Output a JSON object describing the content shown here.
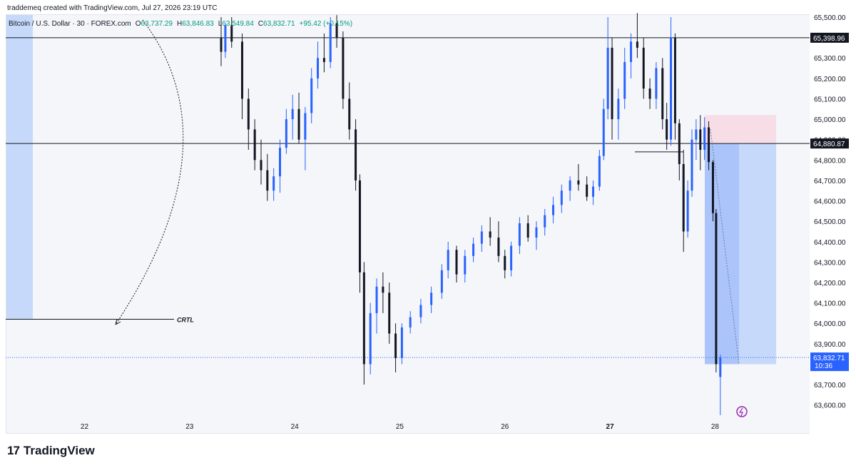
{
  "header": {
    "attribution": "traddemeq created with TradingView.com, Jul 27, 2026 23:19 UTC"
  },
  "symbol": {
    "name": "Bitcoin / U.S. Dollar · 30 · FOREX.com",
    "o_label": "O",
    "o_value": "63,737.29",
    "h_label": "H",
    "h_value": "63,846.83",
    "l_label": "L",
    "l_value": "63,549.84",
    "c_label": "C",
    "c_value": "63,832.71",
    "change": "+95.42 (+0.15%)"
  },
  "branding": {
    "logo_text": "TradingView"
  },
  "annotation": {
    "crtl_label": "CRTL"
  },
  "colors": {
    "candle_up": "#2962ff",
    "candle_down": "#131722",
    "zone_blue": "#bdd3f9",
    "zone_red": "#f7dce3",
    "last_price_bg": "#2962ff",
    "background": "#f4f6fa"
  },
  "chart_data": {
    "type": "candlestick",
    "ylim": [
      63550,
      65500
    ],
    "price_ticks": [
      "65,500.00",
      "65,300.00",
      "65,200.00",
      "65,100.00",
      "65,000.00",
      "64,900.00",
      "64,800.00",
      "64,700.00",
      "64,600.00",
      "64,500.00",
      "64,400.00",
      "64,300.00",
      "64,200.00",
      "64,100.00",
      "64,000.00",
      "63,900.00",
      "63,800.00",
      "63,700.00",
      "63,600.00"
    ],
    "price_tick_values": [
      65500,
      65300,
      65200,
      65100,
      65000,
      64900,
      64800,
      64700,
      64600,
      64500,
      64400,
      64300,
      64200,
      64100,
      64000,
      63900,
      63800,
      63700,
      63600
    ],
    "date_labels": [
      "22",
      "23",
      "24",
      "25",
      "26",
      "27",
      "28"
    ],
    "date_positions": [
      22,
      23,
      24,
      25,
      26,
      27,
      28
    ],
    "x_range": [
      21.25,
      28.9
    ],
    "horizontal_levels": [
      {
        "price": 65398.96,
        "label": "65,398.96"
      },
      {
        "price": 64880.87,
        "label": "64,880.87"
      }
    ],
    "crtl_level": 64020,
    "last_price": {
      "price": 63832.71,
      "label": "63,832.71",
      "countdown": "10:36"
    },
    "candles": [
      {
        "t": 23.3,
        "o": 65400,
        "h": 65500,
        "l": 65260,
        "c": 65330
      },
      {
        "t": 23.34,
        "o": 65330,
        "h": 65470,
        "l": 65300,
        "c": 65460
      },
      {
        "t": 23.4,
        "o": 65460,
        "h": 65500,
        "l": 65350,
        "c": 65380
      },
      {
        "t": 23.5,
        "o": 65380,
        "h": 65420,
        "l": 65000,
        "c": 65100
      },
      {
        "t": 23.56,
        "o": 65100,
        "h": 65150,
        "l": 64850,
        "c": 64950
      },
      {
        "t": 23.62,
        "o": 64950,
        "h": 65000,
        "l": 64750,
        "c": 64800
      },
      {
        "t": 23.68,
        "o": 64800,
        "h": 64900,
        "l": 64680,
        "c": 64750
      },
      {
        "t": 23.74,
        "o": 64750,
        "h": 64830,
        "l": 64600,
        "c": 64650
      },
      {
        "t": 23.8,
        "o": 64650,
        "h": 64760,
        "l": 64600,
        "c": 64720
      },
      {
        "t": 23.86,
        "o": 64720,
        "h": 64900,
        "l": 64640,
        "c": 64860
      },
      {
        "t": 23.92,
        "o": 64860,
        "h": 65050,
        "l": 64830,
        "c": 65000
      },
      {
        "t": 23.98,
        "o": 65000,
        "h": 65120,
        "l": 64900,
        "c": 65050
      },
      {
        "t": 24.04,
        "o": 65050,
        "h": 65130,
        "l": 64880,
        "c": 64900
      },
      {
        "t": 24.1,
        "o": 64900,
        "h": 65060,
        "l": 64750,
        "c": 65030
      },
      {
        "t": 24.16,
        "o": 65030,
        "h": 65250,
        "l": 64980,
        "c": 65200
      },
      {
        "t": 24.22,
        "o": 65200,
        "h": 65380,
        "l": 65150,
        "c": 65300
      },
      {
        "t": 24.28,
        "o": 65300,
        "h": 65420,
        "l": 65230,
        "c": 65280
      },
      {
        "t": 24.34,
        "o": 65280,
        "h": 65500,
        "l": 65250,
        "c": 65470
      },
      {
        "t": 24.4,
        "o": 65470,
        "h": 65510,
        "l": 65350,
        "c": 65400
      },
      {
        "t": 24.46,
        "o": 65400,
        "h": 65430,
        "l": 65050,
        "c": 65100
      },
      {
        "t": 24.52,
        "o": 65100,
        "h": 65180,
        "l": 64900,
        "c": 64950
      },
      {
        "t": 24.58,
        "o": 64950,
        "h": 65000,
        "l": 64650,
        "c": 64700
      },
      {
        "t": 24.62,
        "o": 64700,
        "h": 64730,
        "l": 64150,
        "c": 64250
      },
      {
        "t": 24.66,
        "o": 64250,
        "h": 64300,
        "l": 63700,
        "c": 63800
      },
      {
        "t": 24.72,
        "o": 63800,
        "h": 64100,
        "l": 63750,
        "c": 64050
      },
      {
        "t": 24.78,
        "o": 64050,
        "h": 64220,
        "l": 63950,
        "c": 64180
      },
      {
        "t": 24.84,
        "o": 64180,
        "h": 64250,
        "l": 64050,
        "c": 64150
      },
      {
        "t": 24.9,
        "o": 64150,
        "h": 64200,
        "l": 63900,
        "c": 63950
      },
      {
        "t": 24.96,
        "o": 63950,
        "h": 64000,
        "l": 63760,
        "c": 63830
      },
      {
        "t": 25.02,
        "o": 63830,
        "h": 64000,
        "l": 63800,
        "c": 63980
      },
      {
        "t": 25.1,
        "o": 63980,
        "h": 64060,
        "l": 63950,
        "c": 64030
      },
      {
        "t": 25.2,
        "o": 64030,
        "h": 64120,
        "l": 64000,
        "c": 64090
      },
      {
        "t": 25.3,
        "o": 64090,
        "h": 64180,
        "l": 64050,
        "c": 64150
      },
      {
        "t": 25.4,
        "o": 64150,
        "h": 64290,
        "l": 64120,
        "c": 64260
      },
      {
        "t": 25.46,
        "o": 64260,
        "h": 64400,
        "l": 64220,
        "c": 64360
      },
      {
        "t": 25.54,
        "o": 64360,
        "h": 64380,
        "l": 64200,
        "c": 64240
      },
      {
        "t": 25.62,
        "o": 64240,
        "h": 64360,
        "l": 64200,
        "c": 64330
      },
      {
        "t": 25.7,
        "o": 64330,
        "h": 64420,
        "l": 64300,
        "c": 64390
      },
      {
        "t": 25.78,
        "o": 64390,
        "h": 64480,
        "l": 64350,
        "c": 64450
      },
      {
        "t": 25.86,
        "o": 64450,
        "h": 64520,
        "l": 64380,
        "c": 64420
      },
      {
        "t": 25.94,
        "o": 64420,
        "h": 64500,
        "l": 64300,
        "c": 64330
      },
      {
        "t": 26.0,
        "o": 64330,
        "h": 64360,
        "l": 64220,
        "c": 64260
      },
      {
        "t": 26.06,
        "o": 64260,
        "h": 64400,
        "l": 64230,
        "c": 64380
      },
      {
        "t": 26.14,
        "o": 64380,
        "h": 64520,
        "l": 64340,
        "c": 64490
      },
      {
        "t": 26.22,
        "o": 64490,
        "h": 64530,
        "l": 64400,
        "c": 64420
      },
      {
        "t": 26.3,
        "o": 64420,
        "h": 64500,
        "l": 64360,
        "c": 64470
      },
      {
        "t": 26.38,
        "o": 64470,
        "h": 64560,
        "l": 64430,
        "c": 64530
      },
      {
        "t": 26.46,
        "o": 64530,
        "h": 64620,
        "l": 64490,
        "c": 64580
      },
      {
        "t": 26.54,
        "o": 64580,
        "h": 64680,
        "l": 64540,
        "c": 64650
      },
      {
        "t": 26.62,
        "o": 64650,
        "h": 64720,
        "l": 64600,
        "c": 64700
      },
      {
        "t": 26.7,
        "o": 64700,
        "h": 64780,
        "l": 64650,
        "c": 64680
      },
      {
        "t": 26.78,
        "o": 64680,
        "h": 64720,
        "l": 64600,
        "c": 64620
      },
      {
        "t": 26.84,
        "o": 64620,
        "h": 64700,
        "l": 64580,
        "c": 64670
      },
      {
        "t": 26.9,
        "o": 64670,
        "h": 64850,
        "l": 64650,
        "c": 64820
      },
      {
        "t": 26.94,
        "o": 64820,
        "h": 65100,
        "l": 64800,
        "c": 65050
      },
      {
        "t": 26.98,
        "o": 65050,
        "h": 65500,
        "l": 65000,
        "c": 65350
      },
      {
        "t": 27.02,
        "o": 65350,
        "h": 65400,
        "l": 64900,
        "c": 65000
      },
      {
        "t": 27.08,
        "o": 65000,
        "h": 65150,
        "l": 64900,
        "c": 65100
      },
      {
        "t": 27.14,
        "o": 65100,
        "h": 65350,
        "l": 65050,
        "c": 65280
      },
      {
        "t": 27.2,
        "o": 65280,
        "h": 65420,
        "l": 65200,
        "c": 65380
      },
      {
        "t": 27.26,
        "o": 65380,
        "h": 65520,
        "l": 65300,
        "c": 65350
      },
      {
        "t": 27.32,
        "o": 65350,
        "h": 65400,
        "l": 65100,
        "c": 65150
      },
      {
        "t": 27.38,
        "o": 65150,
        "h": 65200,
        "l": 65050,
        "c": 65100
      },
      {
        "t": 27.44,
        "o": 65100,
        "h": 65280,
        "l": 65050,
        "c": 65250
      },
      {
        "t": 27.5,
        "o": 65250,
        "h": 65300,
        "l": 64950,
        "c": 65000
      },
      {
        "t": 27.54,
        "o": 65000,
        "h": 65080,
        "l": 64850,
        "c": 64900
      },
      {
        "t": 27.58,
        "o": 64900,
        "h": 65500,
        "l": 64870,
        "c": 65400
      },
      {
        "t": 27.62,
        "o": 65400,
        "h": 65420,
        "l": 64900,
        "c": 64980
      },
      {
        "t": 27.66,
        "o": 64980,
        "h": 65000,
        "l": 64700,
        "c": 64780
      },
      {
        "t": 27.7,
        "o": 64780,
        "h": 64850,
        "l": 64350,
        "c": 64450
      },
      {
        "t": 27.74,
        "o": 64450,
        "h": 64700,
        "l": 64420,
        "c": 64650
      },
      {
        "t": 27.78,
        "o": 64650,
        "h": 64950,
        "l": 64620,
        "c": 64900
      },
      {
        "t": 27.82,
        "o": 64900,
        "h": 65000,
        "l": 64800,
        "c": 64950
      },
      {
        "t": 27.86,
        "o": 64950,
        "h": 65020,
        "l": 64750,
        "c": 64850
      },
      {
        "t": 27.9,
        "o": 64850,
        "h": 65010,
        "l": 64800,
        "c": 64960
      },
      {
        "t": 27.94,
        "o": 64960,
        "h": 64990,
        "l": 64750,
        "c": 64790
      },
      {
        "t": 27.98,
        "o": 64790,
        "h": 64800,
        "l": 64500,
        "c": 64540
      },
      {
        "t": 28.01,
        "o": 64540,
        "h": 64560,
        "l": 63760,
        "c": 63800
      },
      {
        "t": 28.05,
        "o": 63737.29,
        "h": 63846.83,
        "l": 63549.84,
        "c": 63832.71
      }
    ]
  }
}
